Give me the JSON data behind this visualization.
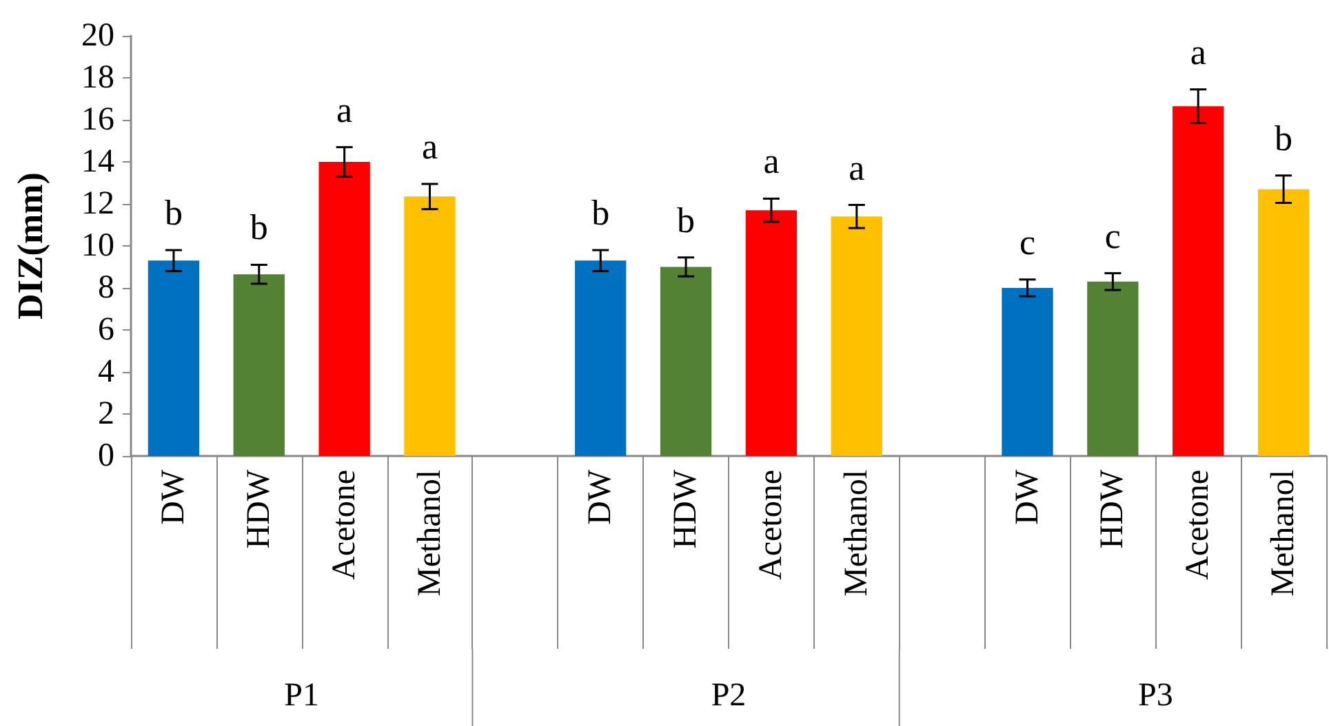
{
  "chart_data": {
    "type": "bar",
    "ylabel": "DIZ(mm)",
    "categories": [
      "DW",
      "HDW",
      "Acetone",
      "Methanol",
      null,
      "DW",
      "HDW",
      "Acetone",
      "Methanol",
      null,
      "DW",
      "HDW",
      "Acetone",
      "Methanol"
    ],
    "values": [
      9.3,
      8.65,
      14.0,
      12.35,
      null,
      9.3,
      9.0,
      11.7,
      11.4,
      null,
      8.0,
      8.3,
      16.65,
      12.7
    ],
    "errors": [
      0.5,
      0.45,
      0.7,
      0.6,
      null,
      0.5,
      0.45,
      0.55,
      0.55,
      null,
      0.4,
      0.4,
      0.8,
      0.65
    ],
    "colors": [
      "#0070c0",
      "#548235",
      "#ff0000",
      "#ffc000",
      null,
      "#0070c0",
      "#548235",
      "#ff0000",
      "#ffc000",
      null,
      "#0070c0",
      "#548235",
      "#ff0000",
      "#ffc000"
    ],
    "value_labels": [
      "b",
      "b",
      "a",
      "a",
      null,
      "b",
      "b",
      "a",
      "a",
      null,
      "c",
      "c",
      "a",
      "b"
    ],
    "annotations": [
      "P1",
      "P2",
      "P3"
    ],
    "ylim": [
      0,
      20
    ],
    "yticks": [
      0,
      2,
      4,
      6,
      8,
      10,
      12,
      14,
      16,
      18,
      20
    ],
    "grid": false
  }
}
